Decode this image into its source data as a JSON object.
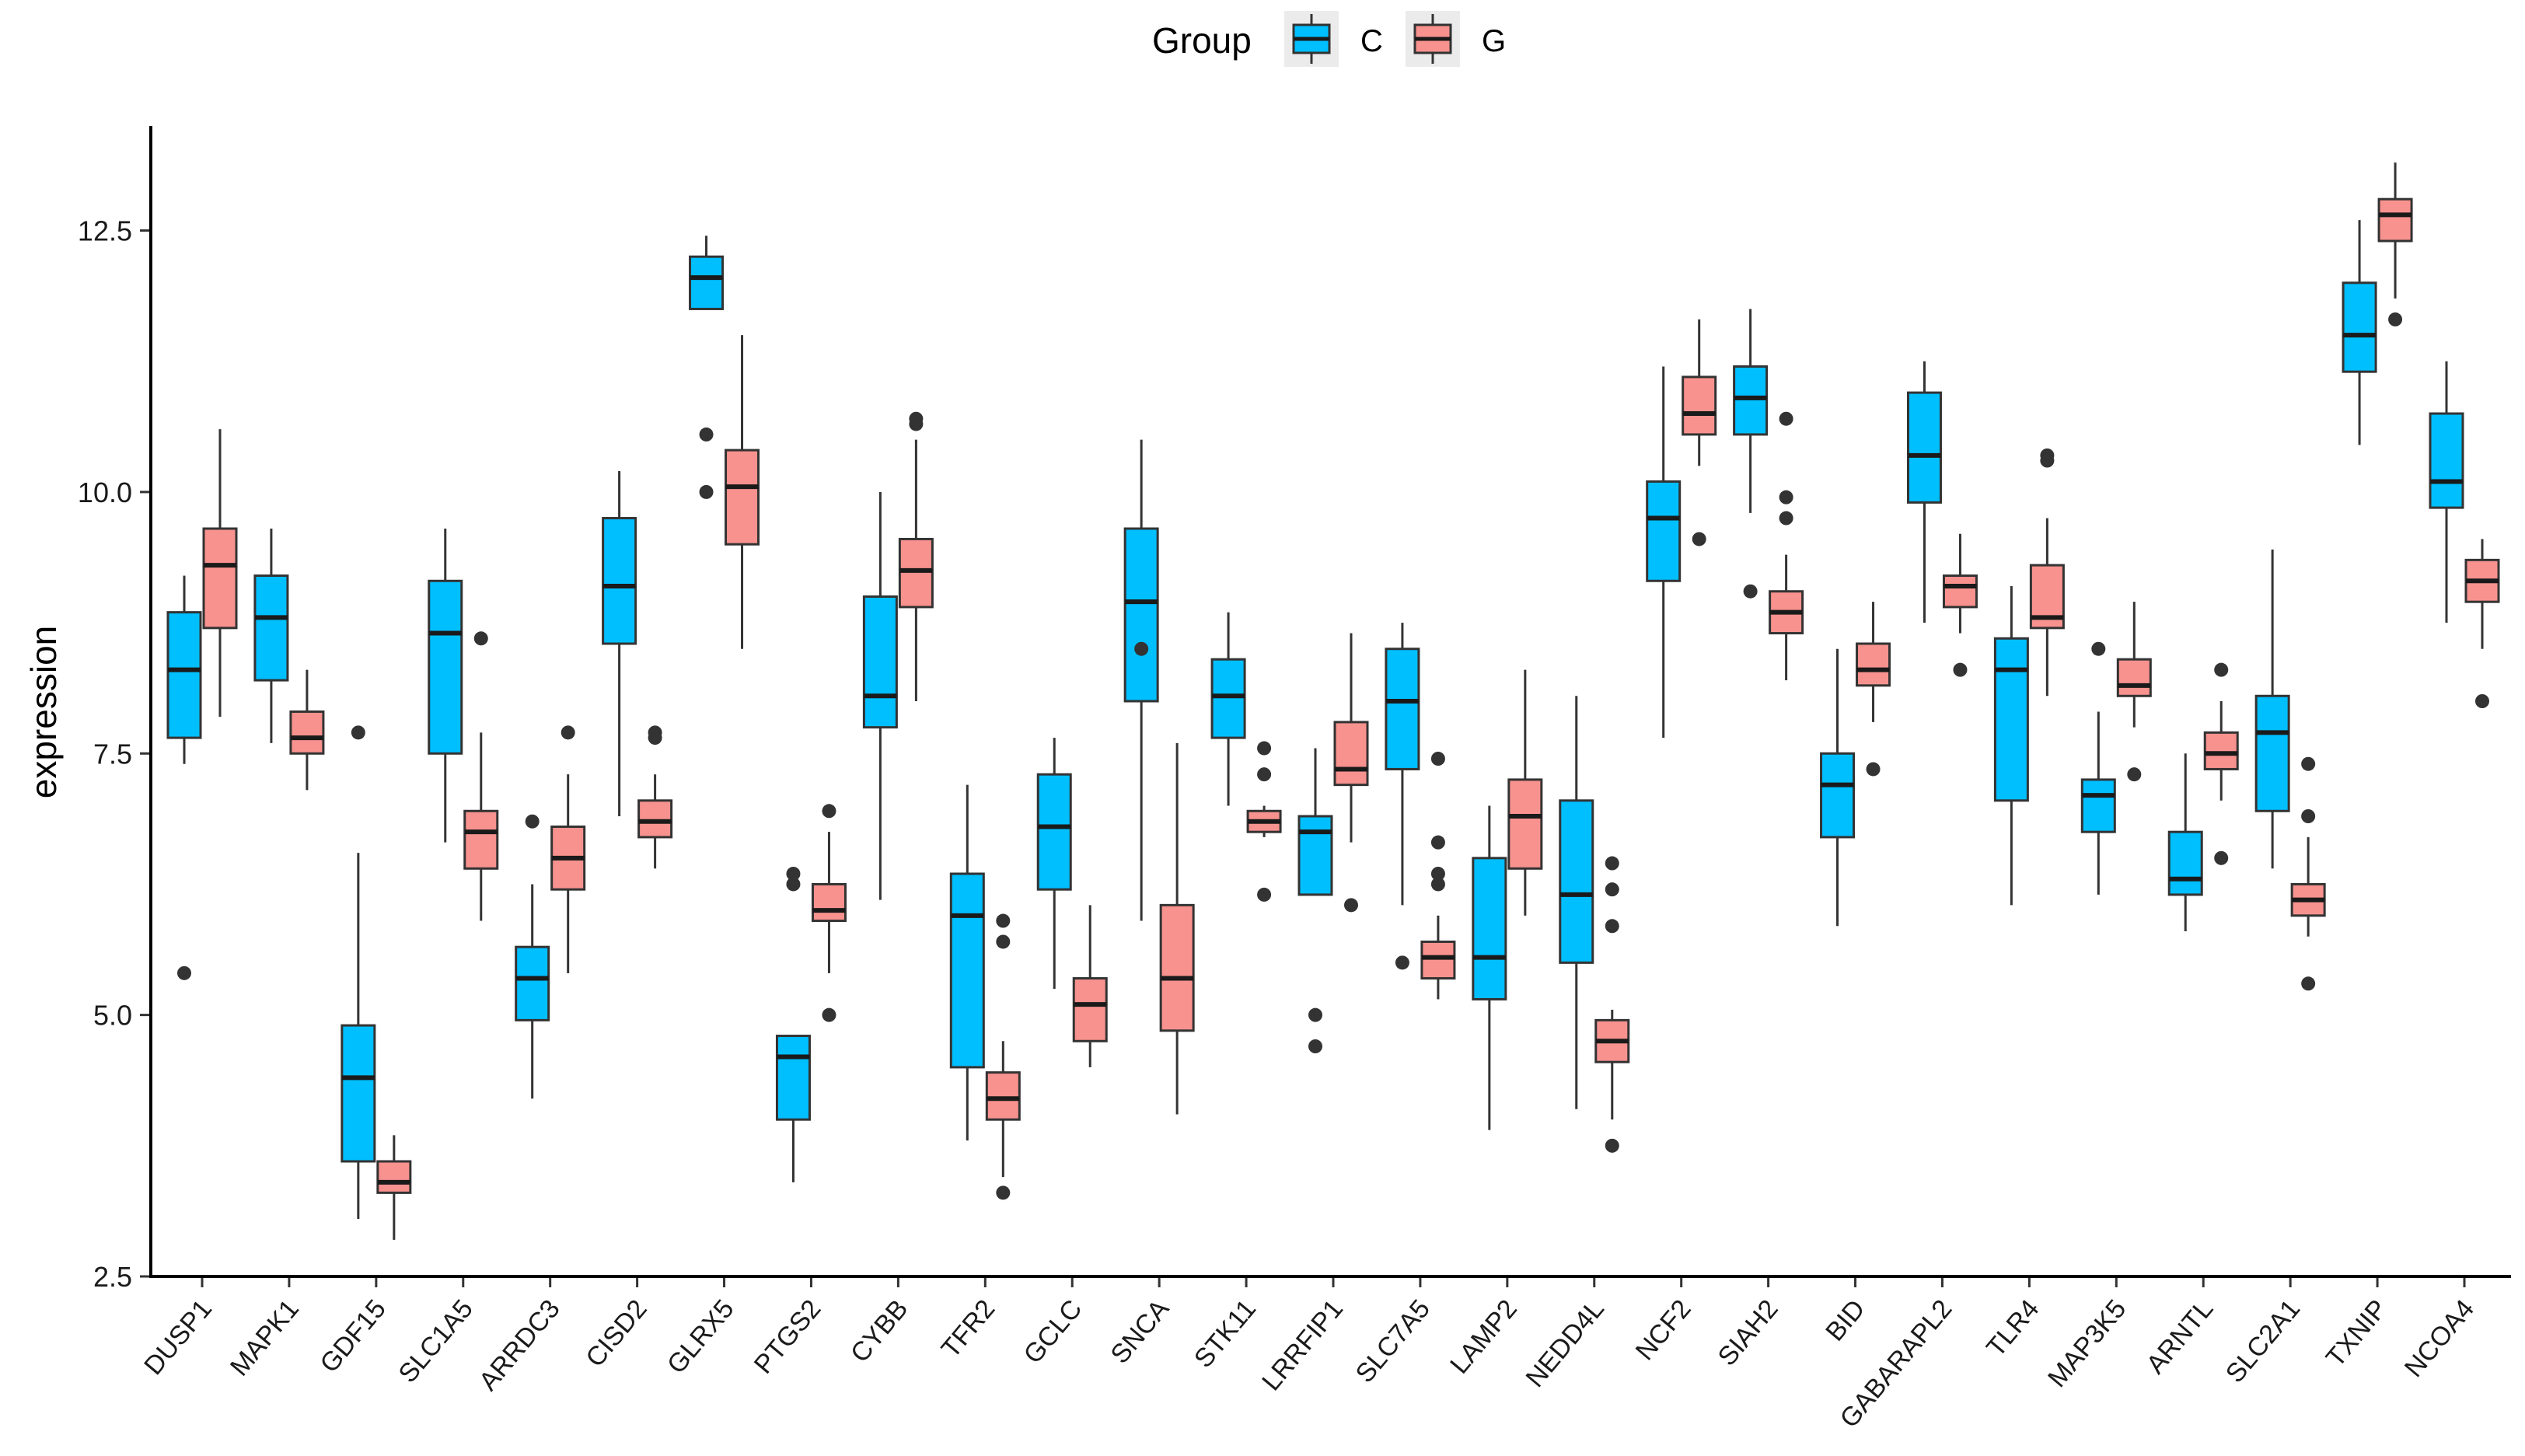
{
  "chart_data": {
    "type": "box",
    "title": "",
    "xlabel": "",
    "ylabel": "expression",
    "ylim": [
      2.5,
      13.5
    ],
    "yticks": [
      2.5,
      5.0,
      7.5,
      10.0,
      12.5
    ],
    "ytick_labels": [
      "2.5",
      "5.0",
      "7.5",
      "10.0",
      "12.5"
    ],
    "legend": {
      "title": "Group",
      "position": "top",
      "entries": [
        {
          "name": "C",
          "color": "#00bfff"
        },
        {
          "name": "G",
          "color": "#f8928e"
        }
      ]
    },
    "categories": [
      "DUSP1",
      "MAPK1",
      "GDF15",
      "SLC1A5",
      "ARRDC3",
      "CISD2",
      "GLRX5",
      "PTGS2",
      "CYBB",
      "TFR2",
      "GCLC",
      "SNCA",
      "STK11",
      "LRRFIP1",
      "SLC7A5",
      "LAMP2",
      "NEDD4L",
      "NCF2",
      "SIAH2",
      "BID",
      "GABARAPL2",
      "TLR4",
      "MAP3K5",
      "ARNTL",
      "SLC2A1",
      "TXNIP",
      "NCOA4"
    ],
    "series": [
      {
        "name": "C",
        "color": "#00bfff",
        "boxes": [
          {
            "whislo": 7.4,
            "q1": 7.65,
            "med": 8.3,
            "q3": 8.85,
            "whishi": 9.2,
            "fliers": [
              5.4
            ]
          },
          {
            "whislo": 7.6,
            "q1": 8.2,
            "med": 8.8,
            "q3": 9.2,
            "whishi": 9.65,
            "fliers": []
          },
          {
            "whislo": 3.05,
            "q1": 3.6,
            "med": 4.4,
            "q3": 4.9,
            "whishi": 6.55,
            "fliers": [
              7.7
            ]
          },
          {
            "whislo": 6.65,
            "q1": 7.5,
            "med": 8.65,
            "q3": 9.15,
            "whishi": 9.65,
            "fliers": []
          },
          {
            "whislo": 4.2,
            "q1": 4.95,
            "med": 5.35,
            "q3": 5.65,
            "whishi": 6.25,
            "fliers": [
              6.85
            ]
          },
          {
            "whislo": 6.9,
            "q1": 8.55,
            "med": 9.1,
            "q3": 9.75,
            "whishi": 10.2,
            "fliers": []
          },
          {
            "whislo": 11.75,
            "q1": 11.75,
            "med": 12.05,
            "q3": 12.25,
            "whishi": 12.45,
            "fliers": [
              10.55,
              10.0
            ]
          },
          {
            "whislo": 3.4,
            "q1": 4.0,
            "med": 4.6,
            "q3": 4.8,
            "whishi": 4.8,
            "fliers": [
              6.35,
              6.25
            ]
          },
          {
            "whislo": 6.1,
            "q1": 7.75,
            "med": 8.05,
            "q3": 9.0,
            "whishi": 10.0,
            "fliers": []
          },
          {
            "whislo": 3.8,
            "q1": 4.5,
            "med": 5.95,
            "q3": 6.35,
            "whishi": 7.2,
            "fliers": []
          },
          {
            "whislo": 5.25,
            "q1": 6.2,
            "med": 6.8,
            "q3": 7.3,
            "whishi": 7.65,
            "fliers": []
          },
          {
            "whislo": 5.9,
            "q1": 8.0,
            "med": 8.95,
            "q3": 9.65,
            "whishi": 10.5,
            "fliers": [
              8.5
            ]
          },
          {
            "whislo": 7.0,
            "q1": 7.65,
            "med": 8.05,
            "q3": 8.4,
            "whishi": 8.85,
            "fliers": []
          },
          {
            "whislo": 6.15,
            "q1": 6.15,
            "med": 6.75,
            "q3": 6.9,
            "whishi": 7.55,
            "fliers": [
              5.0,
              4.7
            ]
          },
          {
            "whislo": 6.05,
            "q1": 7.35,
            "med": 8.0,
            "q3": 8.5,
            "whishi": 8.75,
            "fliers": [
              5.5
            ]
          },
          {
            "whislo": 3.9,
            "q1": 5.15,
            "med": 5.55,
            "q3": 6.5,
            "whishi": 7.0,
            "fliers": []
          },
          {
            "whislo": 4.1,
            "q1": 5.5,
            "med": 6.15,
            "q3": 7.05,
            "whishi": 8.05,
            "fliers": []
          },
          {
            "whislo": 7.65,
            "q1": 9.15,
            "med": 9.75,
            "q3": 10.1,
            "whishi": 11.2,
            "fliers": []
          },
          {
            "whislo": 9.8,
            "q1": 10.55,
            "med": 10.9,
            "q3": 11.2,
            "whishi": 11.75,
            "fliers": [
              9.05
            ]
          },
          {
            "whislo": 5.85,
            "q1": 6.7,
            "med": 7.2,
            "q3": 7.5,
            "whishi": 8.5,
            "fliers": []
          },
          {
            "whislo": 8.75,
            "q1": 9.9,
            "med": 10.35,
            "q3": 10.95,
            "whishi": 11.25,
            "fliers": []
          },
          {
            "whislo": 6.05,
            "q1": 7.05,
            "med": 8.3,
            "q3": 8.6,
            "whishi": 9.1,
            "fliers": []
          },
          {
            "whislo": 6.15,
            "q1": 6.75,
            "med": 7.1,
            "q3": 7.25,
            "whishi": 7.9,
            "fliers": [
              8.5
            ]
          },
          {
            "whislo": 5.8,
            "q1": 6.15,
            "med": 6.3,
            "q3": 6.75,
            "whishi": 7.5,
            "fliers": []
          },
          {
            "whislo": 6.4,
            "q1": 6.95,
            "med": 7.7,
            "q3": 8.05,
            "whishi": 9.45,
            "fliers": []
          },
          {
            "whislo": 10.45,
            "q1": 11.15,
            "med": 11.5,
            "q3": 12.0,
            "whishi": 12.6,
            "fliers": []
          },
          {
            "whislo": 8.75,
            "q1": 9.85,
            "med": 10.1,
            "q3": 10.75,
            "whishi": 11.25,
            "fliers": []
          }
        ]
      },
      {
        "name": "G",
        "color": "#f8928e",
        "boxes": [
          {
            "whislo": 7.85,
            "q1": 8.7,
            "med": 9.3,
            "q3": 9.65,
            "whishi": 10.6,
            "fliers": []
          },
          {
            "whislo": 7.15,
            "q1": 7.5,
            "med": 7.65,
            "q3": 7.9,
            "whishi": 8.3,
            "fliers": []
          },
          {
            "whislo": 2.85,
            "q1": 3.3,
            "med": 3.4,
            "q3": 3.6,
            "whishi": 3.85,
            "fliers": []
          },
          {
            "whislo": 5.9,
            "q1": 6.4,
            "med": 6.75,
            "q3": 6.95,
            "whishi": 7.7,
            "fliers": [
              8.6
            ]
          },
          {
            "whislo": 5.4,
            "q1": 6.2,
            "med": 6.5,
            "q3": 6.8,
            "whishi": 7.3,
            "fliers": [
              7.7
            ]
          },
          {
            "whislo": 6.4,
            "q1": 6.7,
            "med": 6.85,
            "q3": 7.05,
            "whishi": 7.3,
            "fliers": [
              7.7,
              7.65
            ]
          },
          {
            "whislo": 8.5,
            "q1": 9.5,
            "med": 10.05,
            "q3": 10.4,
            "whishi": 11.5,
            "fliers": []
          },
          {
            "whislo": 5.4,
            "q1": 5.9,
            "med": 6.0,
            "q3": 6.25,
            "whishi": 6.75,
            "fliers": [
              6.95,
              5.0
            ]
          },
          {
            "whislo": 8.0,
            "q1": 8.9,
            "med": 9.25,
            "q3": 9.55,
            "whishi": 10.5,
            "fliers": [
              10.7,
              10.65
            ]
          },
          {
            "whislo": 3.45,
            "q1": 4.0,
            "med": 4.2,
            "q3": 4.45,
            "whishi": 4.75,
            "fliers": [
              5.9,
              5.7,
              3.3
            ]
          },
          {
            "whislo": 4.5,
            "q1": 4.75,
            "med": 5.1,
            "q3": 5.35,
            "whishi": 6.05,
            "fliers": []
          },
          {
            "whislo": 4.05,
            "q1": 4.85,
            "med": 5.35,
            "q3": 6.05,
            "whishi": 7.6,
            "fliers": []
          },
          {
            "whislo": 6.7,
            "q1": 6.75,
            "med": 6.85,
            "q3": 6.95,
            "whishi": 7.0,
            "fliers": [
              7.55,
              7.3,
              6.15
            ]
          },
          {
            "whislo": 6.65,
            "q1": 7.2,
            "med": 7.35,
            "q3": 7.8,
            "whishi": 8.65,
            "fliers": [
              6.05
            ]
          },
          {
            "whislo": 5.15,
            "q1": 5.35,
            "med": 5.55,
            "q3": 5.7,
            "whishi": 5.95,
            "fliers": [
              7.45,
              6.65,
              6.35,
              6.25
            ]
          },
          {
            "whislo": 5.95,
            "q1": 6.4,
            "med": 6.9,
            "q3": 7.25,
            "whishi": 8.3,
            "fliers": []
          },
          {
            "whislo": 4.0,
            "q1": 4.55,
            "med": 4.75,
            "q3": 4.95,
            "whishi": 5.05,
            "fliers": [
              6.45,
              6.2,
              5.85,
              3.75
            ]
          },
          {
            "whislo": 10.25,
            "q1": 10.55,
            "med": 10.75,
            "q3": 11.1,
            "whishi": 11.65,
            "fliers": [
              9.55
            ]
          },
          {
            "whislo": 8.2,
            "q1": 8.65,
            "med": 8.85,
            "q3": 9.05,
            "whishi": 9.4,
            "fliers": [
              10.7,
              9.95,
              9.75
            ]
          },
          {
            "whislo": 7.8,
            "q1": 8.15,
            "med": 8.3,
            "q3": 8.55,
            "whishi": 8.95,
            "fliers": [
              7.35
            ]
          },
          {
            "whislo": 8.65,
            "q1": 8.9,
            "med": 9.1,
            "q3": 9.2,
            "whishi": 9.6,
            "fliers": [
              8.3
            ]
          },
          {
            "whislo": 8.05,
            "q1": 8.7,
            "med": 8.8,
            "q3": 9.3,
            "whishi": 9.75,
            "fliers": [
              10.35,
              10.3
            ]
          },
          {
            "whislo": 7.75,
            "q1": 8.05,
            "med": 8.15,
            "q3": 8.4,
            "whishi": 8.95,
            "fliers": [
              7.3
            ]
          },
          {
            "whislo": 7.05,
            "q1": 7.35,
            "med": 7.5,
            "q3": 7.7,
            "whishi": 8.0,
            "fliers": [
              8.3,
              6.5
            ]
          },
          {
            "whislo": 5.75,
            "q1": 5.95,
            "med": 6.1,
            "q3": 6.25,
            "whishi": 6.7,
            "fliers": [
              7.4,
              6.9,
              5.3
            ]
          },
          {
            "whislo": 11.85,
            "q1": 12.4,
            "med": 12.65,
            "q3": 12.8,
            "whishi": 13.15,
            "fliers": [
              11.65
            ]
          },
          {
            "whislo": 8.5,
            "q1": 8.95,
            "med": 9.15,
            "q3": 9.35,
            "whishi": 9.55,
            "fliers": [
              8.0
            ]
          }
        ]
      }
    ]
  }
}
